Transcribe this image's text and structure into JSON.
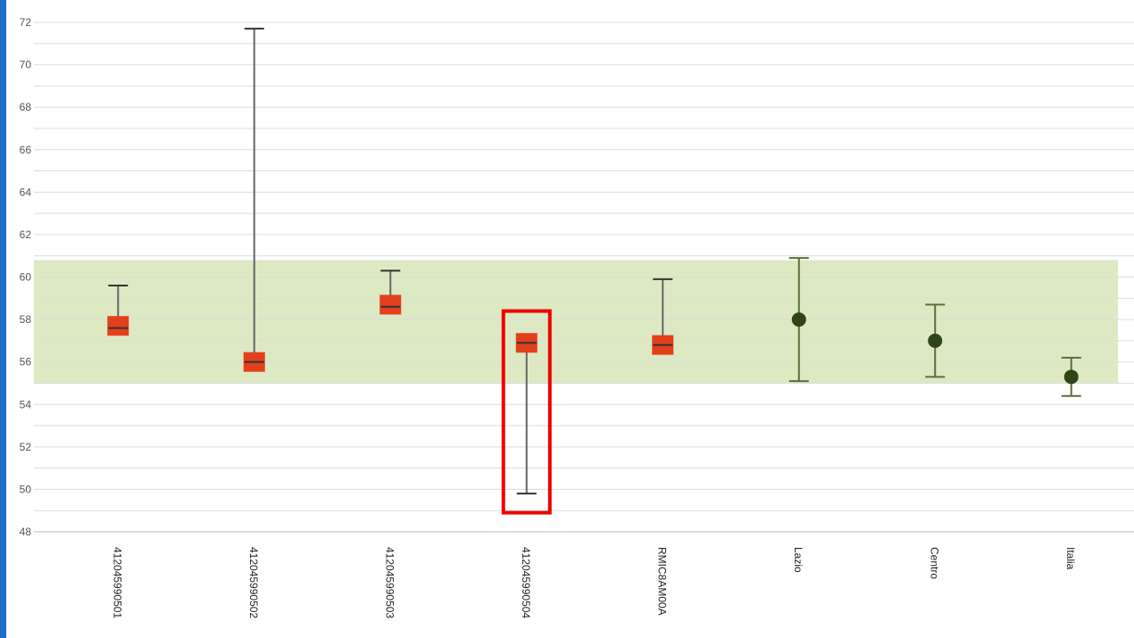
{
  "colors": {
    "accent_bar": "#1a6fc4",
    "band": "#dde9c3",
    "grid": "#dcdcdc",
    "school_marker": "#e2401c",
    "school_errorbar": "#666666",
    "region_marker": "#2f4417",
    "region_errorbar": "#5a6e3a",
    "highlight": "#ee0000"
  },
  "chart_data": {
    "type": "scatter",
    "title": "",
    "xlabel": "",
    "ylabel": "",
    "ylim": [
      48,
      72
    ],
    "yticks": [
      48,
      50,
      52,
      54,
      56,
      58,
      60,
      62,
      64,
      66,
      68,
      70,
      72
    ],
    "grid": true,
    "band": {
      "low": 55,
      "high": 60.8
    },
    "categories": [
      "412045990501",
      "412045990502",
      "412045990503",
      "412045990504",
      "RMIC8AM00A",
      "Lazio",
      "Centro",
      "Italia"
    ],
    "points": [
      {
        "label": "412045990501",
        "value": 57.7,
        "low": 57.6,
        "high": 59.6,
        "marker": "square"
      },
      {
        "label": "412045990502",
        "value": 56.0,
        "low": 56.0,
        "high": 71.7,
        "marker": "square"
      },
      {
        "label": "412045990503",
        "value": 58.7,
        "low": 58.6,
        "high": 60.3,
        "marker": "square"
      },
      {
        "label": "412045990504",
        "value": 56.9,
        "low": 49.8,
        "high": 56.9,
        "marker": "square"
      },
      {
        "label": "RMIC8AM00A",
        "value": 56.8,
        "low": 56.8,
        "high": 59.9,
        "marker": "square"
      },
      {
        "label": "Lazio",
        "value": 58.0,
        "low": 55.1,
        "high": 60.9,
        "marker": "circle"
      },
      {
        "label": "Centro",
        "value": 57.0,
        "low": 55.3,
        "high": 58.7,
        "marker": "circle"
      },
      {
        "label": "Italia",
        "value": 55.3,
        "low": 54.4,
        "high": 56.2,
        "marker": "circle"
      }
    ],
    "highlight_category": "412045990504",
    "highlight_range": [
      48.9,
      58.4
    ]
  }
}
